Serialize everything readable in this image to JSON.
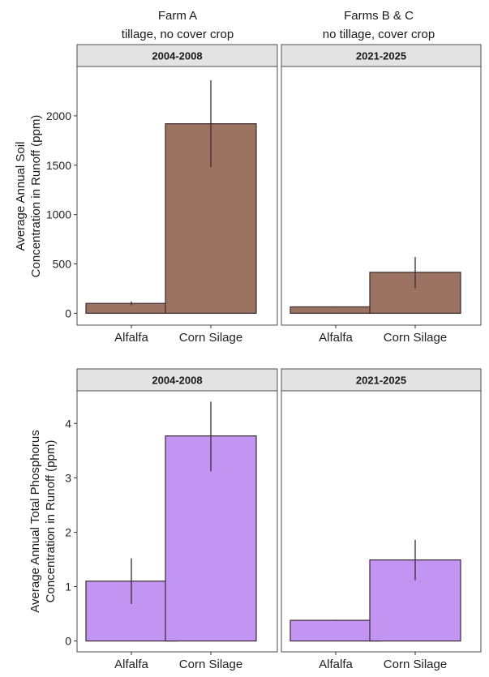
{
  "header": {
    "left": [
      "Farm A",
      "tillage, no cover crop"
    ],
    "right": [
      "Farms B & C",
      "no tillage, cover crop"
    ]
  },
  "colors": {
    "soil_bar": "#9b7360",
    "phosphorus_bar": "#c395f2",
    "strip_fill": "#e3e3e3",
    "panel_border": "#4d4d4d",
    "bar_outline": "#3b2a33",
    "error_line": "#3a2a35"
  },
  "chart_data": [
    {
      "type": "bar",
      "ylabel": [
        "Average Annual Soil",
        "Concentration in Runoff (ppm)"
      ],
      "ylim": [
        -120,
        2500
      ],
      "yticks": [
        0,
        500,
        1000,
        1500,
        2000
      ],
      "categories": [
        "Alfalfa",
        "Corn Silage"
      ],
      "grid": false,
      "facets": [
        {
          "label": "2004-2008",
          "values": [
            100,
            1920
          ],
          "error_low": [
            80,
            1480
          ],
          "error_high": [
            120,
            2360
          ]
        },
        {
          "label": "2021-2025",
          "values": [
            65,
            415
          ],
          "error_low": [
            60,
            255
          ],
          "error_high": [
            70,
            570
          ]
        }
      ]
    },
    {
      "type": "bar",
      "ylabel": [
        "Average Annual Total Phosphorus",
        "Concentration in Runoff (ppm)"
      ],
      "ylim": [
        -0.2,
        4.6
      ],
      "yticks": [
        0,
        1,
        2,
        3,
        4
      ],
      "categories": [
        "Alfalfa",
        "Corn Silage"
      ],
      "grid": false,
      "facets": [
        {
          "label": "2004-2008",
          "values": [
            1.1,
            3.77
          ],
          "error_low": [
            0.68,
            3.12
          ],
          "error_high": [
            1.52,
            4.4
          ]
        },
        {
          "label": "2021-2025",
          "values": [
            0.38,
            1.49
          ],
          "error_low": [
            0.37,
            1.12
          ],
          "error_high": [
            0.39,
            1.86
          ]
        }
      ]
    }
  ]
}
